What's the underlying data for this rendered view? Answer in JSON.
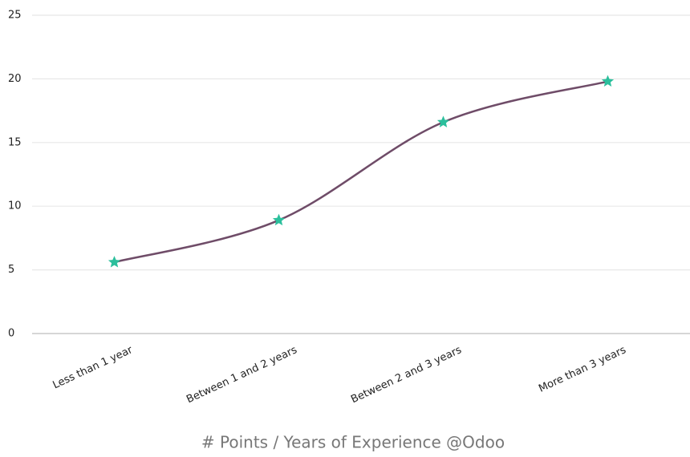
{
  "chart_data": {
    "type": "line",
    "title": "# Points / Years of Experience @Odoo",
    "categories": [
      "Less than 1 year",
      "Between 1 and 2 years",
      "Between 2 and 3 years",
      "More than 3 years"
    ],
    "series": [
      {
        "name": "Points",
        "color": "#6f4c68",
        "marker_color": "#2bbf9c",
        "values": [
          5.6,
          8.9,
          16.6,
          19.8
        ]
      }
    ],
    "ylim": [
      0,
      25
    ],
    "yticks": [
      0,
      5,
      10,
      15,
      20,
      25
    ],
    "grid": true,
    "smooth": true
  }
}
